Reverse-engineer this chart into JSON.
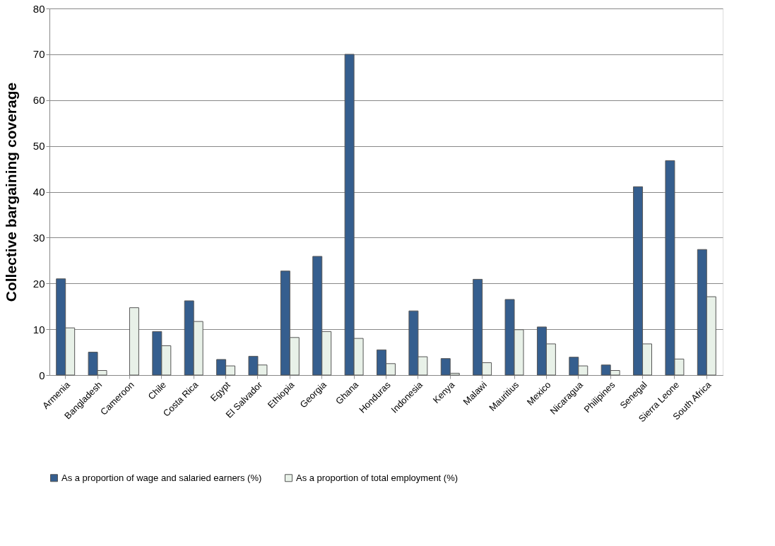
{
  "chart_data": {
    "type": "bar",
    "ylabel": "Collective bargaining coverage",
    "categories": [
      "Armenia",
      "Bangladesh",
      "Cameroon",
      "Chile",
      "Costa Rica",
      "Egypt",
      "El Salvador",
      "Ethiopia",
      "Georgia",
      "Ghana",
      "Honduras",
      "Indonesia",
      "Kenya",
      "Malawi",
      "Mauritius",
      "Mexico",
      "Nicaragua",
      "Philipines",
      "Senegal",
      "Sierra Leone",
      "South Africa"
    ],
    "series": [
      {
        "name": "As a proportion of wage and salaried earners (%)",
        "color": "#355e8e",
        "values": [
          21.0,
          5.0,
          null,
          9.5,
          16.2,
          3.4,
          4.1,
          22.7,
          25.9,
          70.0,
          5.5,
          14.0,
          3.6,
          20.9,
          16.5,
          10.5,
          3.9,
          2.2,
          41.1,
          46.8,
          27.4
        ]
      },
      {
        "name": "As a proportion of total employment (%)",
        "color": "#e8f1e8",
        "values": [
          10.3,
          1.0,
          14.7,
          6.4,
          11.7,
          2.0,
          2.2,
          8.2,
          9.5,
          8.0,
          2.5,
          4.0,
          0.4,
          2.7,
          9.9,
          6.8,
          2.0,
          1.0,
          6.8,
          3.5,
          17.1
        ]
      }
    ],
    "ylim": [
      0,
      80
    ],
    "yticks": [
      0,
      10,
      20,
      30,
      40,
      50,
      60,
      70,
      80
    ],
    "grid": "y",
    "legend": "bottom"
  }
}
